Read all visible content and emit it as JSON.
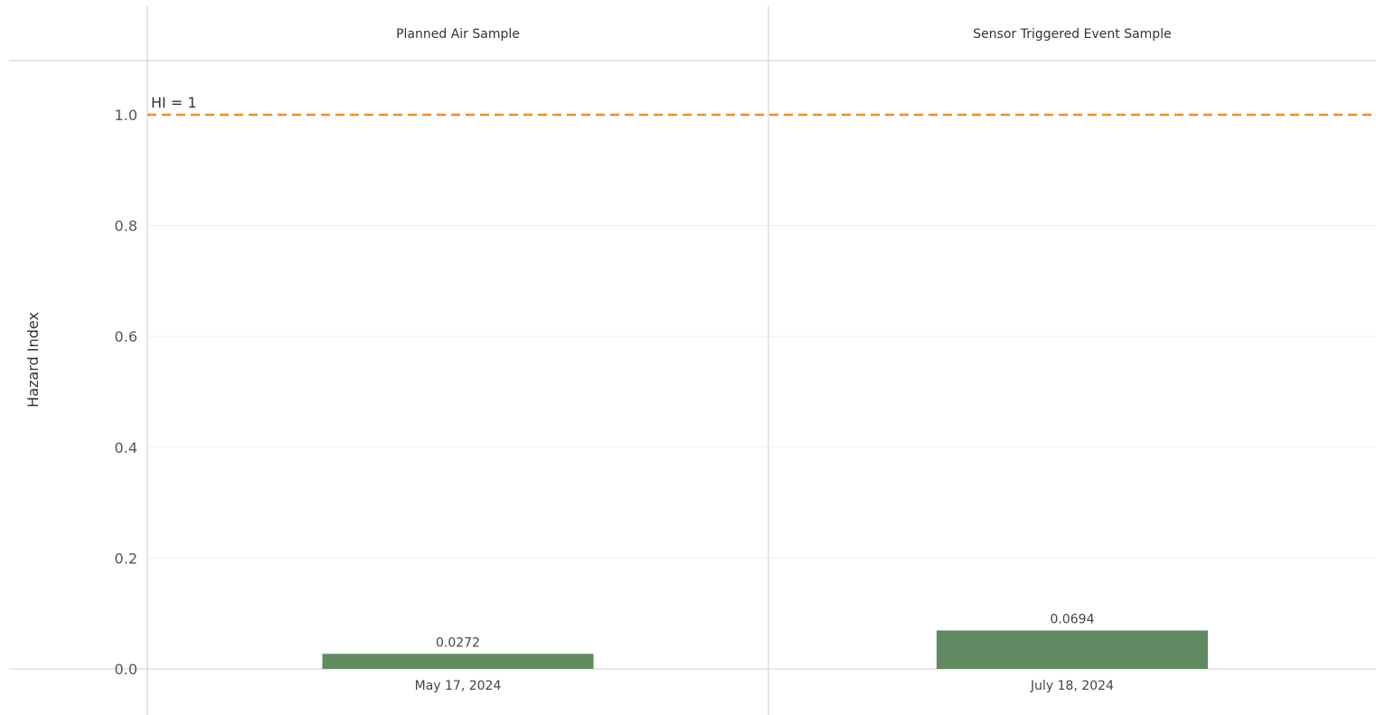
{
  "chart_data": {
    "type": "bar",
    "ylabel": "Hazard Index",
    "ylim": [
      0,
      1.1
    ],
    "yticks": [
      "0.0",
      "0.2",
      "0.4",
      "0.6",
      "0.8",
      "1.0"
    ],
    "grid": true,
    "panels": [
      {
        "header": "Planned Air Sample",
        "category": "May 17, 2024",
        "value": 0.0272,
        "value_label": "0.0272"
      },
      {
        "header": "Sensor Triggered Event Sample",
        "category": "July 18, 2024",
        "value": 0.0694,
        "value_label": "0.0694"
      }
    ],
    "reference_line": {
      "value": 1,
      "label": "HI = 1",
      "color": "#f28e2b"
    },
    "bar_color": "#628a63"
  }
}
